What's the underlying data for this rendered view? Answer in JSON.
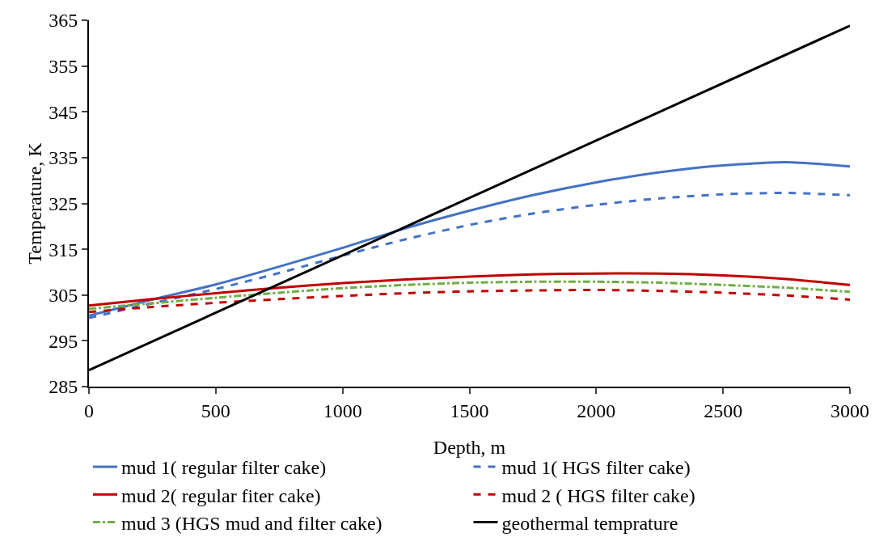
{
  "chart_data": {
    "type": "line",
    "xlabel": "Depth, m",
    "ylabel": "Temperature, K",
    "x": [
      0,
      250,
      500,
      750,
      1000,
      1250,
      1500,
      1750,
      2000,
      2250,
      2500,
      2750,
      3000
    ],
    "series": [
      {
        "name": "mud 1( regular filter cake)",
        "color": "#4472c4",
        "line_style": "solid",
        "values": [
          300.5,
          304,
          307.3,
          311.2,
          315.3,
          319.6,
          323.4,
          326.8,
          329.6,
          331.8,
          333.3,
          334,
          333.1
        ]
      },
      {
        "name": "mud 1( HGS filter cake)",
        "color": "#4472c4",
        "line_style": "dashed",
        "values": [
          300,
          303.2,
          306.3,
          309.8,
          313.6,
          317.2,
          320.3,
          322.8,
          324.7,
          326.1,
          327,
          327.3,
          326.8
        ]
      },
      {
        "name": "mud 2( regular fiter cake)",
        "color": "#c00000",
        "line_style": "solid",
        "values": [
          302.7,
          304.1,
          305.4,
          306.6,
          307.6,
          308.4,
          309,
          309.5,
          309.7,
          309.7,
          309.3,
          308.5,
          307.2
        ]
      },
      {
        "name": "mud 2 ( HGS filter cake)",
        "color": "#c00000",
        "line_style": "dashed",
        "values": [
          301.3,
          302.4,
          303.3,
          304.1,
          304.8,
          305.4,
          305.8,
          306,
          306.1,
          305.9,
          305.5,
          304.9,
          304
        ]
      },
      {
        "name": "mud 3 (HGS mud and filter cake)",
        "color": "#70ad47",
        "line_style": "dashdot",
        "values": [
          302,
          303.2,
          304.4,
          305.5,
          306.5,
          307.2,
          307.7,
          307.9,
          307.9,
          307.7,
          307.2,
          306.6,
          305.7
        ]
      },
      {
        "name": "geothermal temprature",
        "color": "#000000",
        "line_style": "solid",
        "x": [
          0,
          3000
        ],
        "values": [
          288.6,
          363.8
        ]
      }
    ],
    "xlim": [
      0,
      3000
    ],
    "xticks": [
      0,
      500,
      1000,
      1500,
      2000,
      2500,
      3000
    ],
    "ylim": [
      285,
      365
    ],
    "yticks": [
      285,
      295,
      305,
      315,
      325,
      335,
      345,
      355,
      365
    ],
    "grid": false,
    "legend": "bottom",
    "marker": "none"
  }
}
